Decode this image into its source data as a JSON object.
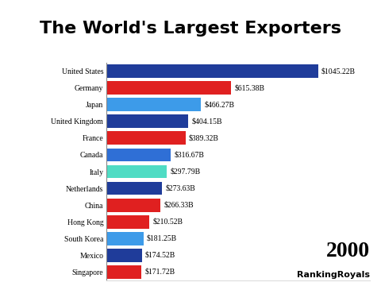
{
  "chart_data": {
    "type": "bar",
    "orientation": "horizontal",
    "title": "The World's Largest Exporters",
    "categories": [
      "United States",
      "Germany",
      "Japan",
      "United Kingdom",
      "France",
      "Canada",
      "Italy",
      "Netherlands",
      "China",
      "Hong Kong",
      "South Korea",
      "Mexico",
      "Singapore"
    ],
    "values": [
      1045.22,
      615.38,
      466.27,
      404.15,
      389.32,
      316.67,
      297.79,
      273.63,
      266.33,
      210.52,
      181.25,
      174.52,
      171.72
    ],
    "value_labels": [
      "$1045.22B",
      "$615.38B",
      "$466.27B",
      "$404.15B",
      "$389.32B",
      "$316.67B",
      "$297.79B",
      "$273.63B",
      "$266.33B",
      "$210.52B",
      "$181.25B",
      "$174.52B",
      "$171.72B"
    ],
    "colors": [
      "#1f3c9a",
      "#e02020",
      "#3d9be9",
      "#1f3c9a",
      "#e02020",
      "#2f6fd6",
      "#4fdcc4",
      "#1f3c9a",
      "#e02020",
      "#e02020",
      "#3d9be9",
      "#1f3c9a",
      "#e02020"
    ],
    "data_labels": true,
    "tick_labels": "y",
    "xlim": [
      0,
      1300
    ],
    "xticks": [],
    "annotations": [
      "2000",
      "RankingRoyals"
    ]
  }
}
